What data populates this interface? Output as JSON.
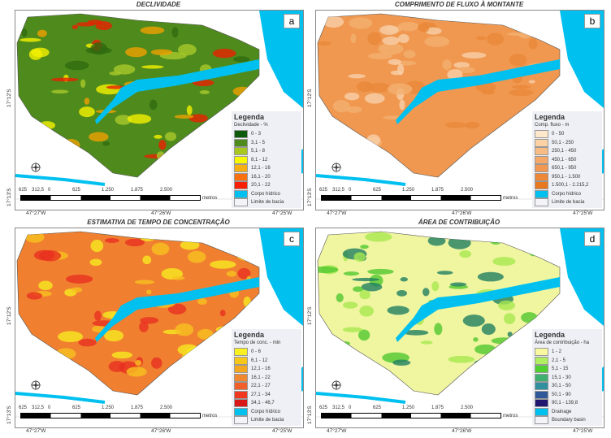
{
  "coords": {
    "lon": [
      "47°27'W",
      "47°26'W",
      "47°25'W"
    ],
    "lat": [
      "17°12'S",
      "17°13'S"
    ]
  },
  "scalebar": {
    "ticks": [
      "625",
      "312,5",
      "0",
      "625",
      "1.250",
      "1.875",
      "2.500"
    ],
    "unit": "metros"
  },
  "panels": [
    {
      "letter": "a",
      "title": "DECLIVIDADE",
      "legend_title": "Legenda",
      "subtitle": "Declividade - %",
      "base": "#4f8a1c",
      "accent": [
        "#2f6a10",
        "#a8c82a",
        "#f4f000",
        "#f0a000",
        "#e82000"
      ],
      "items": [
        {
          "label": "0 - 3",
          "color": "#0d5a0a"
        },
        {
          "label": "3,1 - 5",
          "color": "#4f8a1c"
        },
        {
          "label": "5,1 - 8",
          "color": "#a8c81e"
        },
        {
          "label": "8,1 - 12",
          "color": "#f8f800"
        },
        {
          "label": "12,1 - 16",
          "color": "#f8b010"
        },
        {
          "label": "16,1 - 20",
          "color": "#f87010"
        },
        {
          "label": "20,1 - 22",
          "color": "#f82000"
        },
        {
          "label": "Corpo hídrico",
          "color": "#00c0f0"
        },
        {
          "label": "Limite de bacia",
          "color": "#f4f4f8"
        }
      ]
    },
    {
      "letter": "b",
      "title": "COMPRIMENTO DE FLUXO À MONTANTE",
      "legend_title": "Legenda",
      "subtitle": "Comp. fluxo - m",
      "base": "#f09850",
      "accent": [
        "#f4b070",
        "#f8d0a8",
        "#e88838"
      ],
      "items": [
        {
          "label": "0 - 50",
          "color": "#fde8cc"
        },
        {
          "label": "50,1 - 250",
          "color": "#fcd2a4"
        },
        {
          "label": "250,1 - 450",
          "color": "#f8bc84"
        },
        {
          "label": "450,1 - 650",
          "color": "#f5a868"
        },
        {
          "label": "650,1 - 950",
          "color": "#f29850"
        },
        {
          "label": "950,1 - 1.500",
          "color": "#ee8838"
        },
        {
          "label": "1.500,1 - 2.215,2",
          "color": "#e87820"
        },
        {
          "label": "Corpo hídrico",
          "color": "#00c0f0"
        },
        {
          "label": "Limite de bacia",
          "color": "#f4f4f8"
        }
      ]
    },
    {
      "letter": "c",
      "title": "ESTIMATIVA DE TEMPO DE CONCENTRAÇÃO",
      "legend_title": "Legenda",
      "subtitle": "Tempo de conc. - min",
      "base": "#f08030",
      "accent": [
        "#e83020",
        "#f8c020",
        "#f8e820"
      ],
      "items": [
        {
          "label": "0 - 6",
          "color": "#f8f020"
        },
        {
          "label": "6,1 - 12",
          "color": "#f8c818"
        },
        {
          "label": "12,1 - 16",
          "color": "#f4a820"
        },
        {
          "label": "16,1 - 22",
          "color": "#f08830"
        },
        {
          "label": "22,1 - 27",
          "color": "#f06028"
        },
        {
          "label": "27,1 - 34",
          "color": "#f03820"
        },
        {
          "label": "34,1 - 46,7",
          "color": "#d81818"
        },
        {
          "label": "Corpo hídrico",
          "color": "#00c0f0"
        },
        {
          "label": "Limite de bacia",
          "color": "#f4f4f8"
        }
      ]
    },
    {
      "letter": "d",
      "title": "ÁREA DE CONTRIBUIÇÃO",
      "legend_title": "Legenda",
      "subtitle": "Área de contribuição - ha",
      "base": "#f0f5a0",
      "accent": [
        "#a8e850",
        "#50c830",
        "#208060"
      ],
      "items": [
        {
          "label": "1 - 2",
          "color": "#f8f8a0"
        },
        {
          "label": "2,1 - 5",
          "color": "#b0f060"
        },
        {
          "label": "5,1 - 15",
          "color": "#50d030"
        },
        {
          "label": "15,1 - 30",
          "color": "#40b070"
        },
        {
          "label": "30,1 - 50",
          "color": "#3090a0"
        },
        {
          "label": "50,1 - 90",
          "color": "#305898"
        },
        {
          "label": "90,1 - 139,8",
          "color": "#201870"
        },
        {
          "label": "Drainage",
          "color": "#00c0f0"
        },
        {
          "label": "Boundary basin",
          "color": "#f4f4f8"
        }
      ]
    }
  ]
}
